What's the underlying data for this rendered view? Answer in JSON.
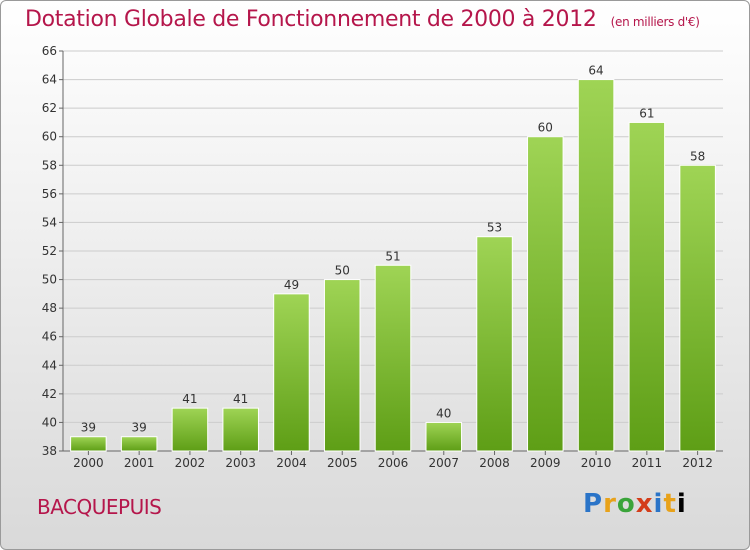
{
  "header": {
    "title": "Dotation Globale de Fonctionnement de 2000 à 2012",
    "subtitle": "(en milliers d'€)"
  },
  "footer": {
    "commune": "BACQUEPUIS",
    "logo": "Proxiti"
  },
  "chart_data": {
    "type": "bar",
    "title": "Dotation Globale de Fonctionnement de 2000 à 2012",
    "subtitle": "(en milliers d'€)",
    "categories": [
      "2000",
      "2001",
      "2002",
      "2003",
      "2004",
      "2005",
      "2006",
      "2007",
      "2008",
      "2009",
      "2010",
      "2011",
      "2012"
    ],
    "values": [
      39,
      39,
      41,
      41,
      49,
      50,
      51,
      40,
      53,
      60,
      64,
      61,
      58
    ],
    "ylim": [
      38,
      66
    ],
    "yticks": [
      38,
      40,
      42,
      44,
      46,
      48,
      50,
      52,
      54,
      56,
      58,
      60,
      62,
      64,
      66
    ],
    "grid": true,
    "bar_color": "#7cbf2a",
    "grid_color": "#cccccc"
  }
}
